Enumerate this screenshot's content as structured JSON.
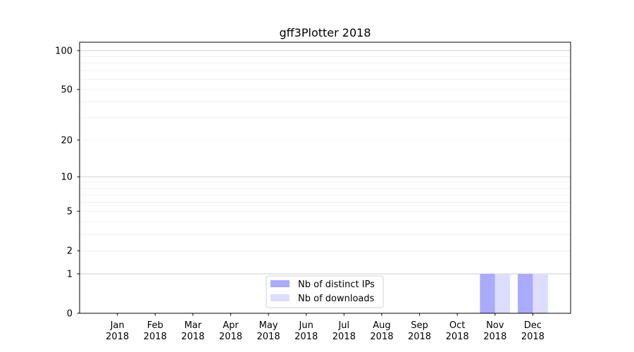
{
  "chart_data": {
    "type": "bar",
    "title": "gff3Plotter 2018",
    "xlabel": "",
    "ylabel": "",
    "yscale": "log(1+y)",
    "ylim": [
      0,
      116
    ],
    "yticks": [
      0,
      1,
      2,
      5,
      10,
      20,
      50,
      100
    ],
    "grid": "y major and minor",
    "legend_placement": "lower center",
    "categories": [
      "Jan\n2018",
      "Feb\n2018",
      "Mar\n2018",
      "Apr\n2018",
      "May\n2018",
      "Jun\n2018",
      "Jul\n2018",
      "Aug\n2018",
      "Sep\n2018",
      "Oct\n2018",
      "Nov\n2018",
      "Dec\n2018"
    ],
    "series": [
      {
        "name": "Nb of distinct IPs",
        "color": "#aaaaff",
        "values": [
          0,
          0,
          0,
          0,
          0,
          0,
          0,
          0,
          0,
          0,
          1,
          1
        ]
      },
      {
        "name": "Nb of downloads",
        "color": "#ddddff",
        "values": [
          0,
          0,
          0,
          0,
          0,
          0,
          0,
          0,
          0,
          0,
          1,
          1
        ]
      }
    ]
  }
}
